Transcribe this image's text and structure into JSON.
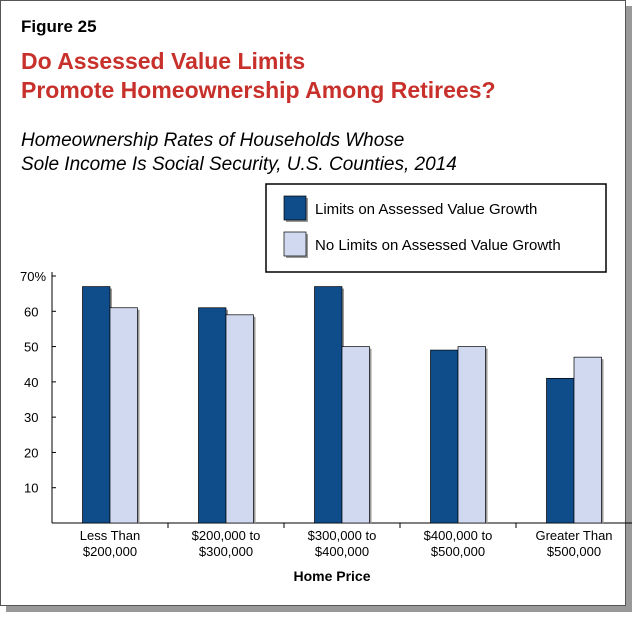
{
  "figure_label": "Figure 25",
  "title_lines": [
    "Do Assessed Value Limits",
    "Promote Homeownership Among Retirees?"
  ],
  "subtitle_lines": [
    "Homeownership Rates of Households Whose",
    "Sole Income Is Social Security, U.S. Counties, 2014"
  ],
  "chart_data": {
    "type": "bar",
    "categories": [
      [
        "Less Than",
        "$200,000"
      ],
      [
        "$200,000 to",
        "$300,000"
      ],
      [
        "$300,000 to",
        "$400,000"
      ],
      [
        "$400,000 to",
        "$500,000"
      ],
      [
        "Greater Than",
        "$500,000"
      ]
    ],
    "series": [
      {
        "name": "Limits on Assessed Value Growth",
        "color": "#0e4c8a",
        "values": [
          67,
          61,
          67,
          49,
          41
        ]
      },
      {
        "name": "No Limits on Assessed Value Growth",
        "color": "#d0d9ef",
        "values": [
          61,
          59,
          50,
          50,
          47
        ]
      }
    ],
    "xlabel": "Home Price",
    "ylabel": "",
    "ylim": [
      0,
      70
    ],
    "yticks": [
      "",
      "10",
      "20",
      "30",
      "40",
      "50",
      "60",
      "70%"
    ],
    "grid": false,
    "legend_placement": "top-right"
  }
}
